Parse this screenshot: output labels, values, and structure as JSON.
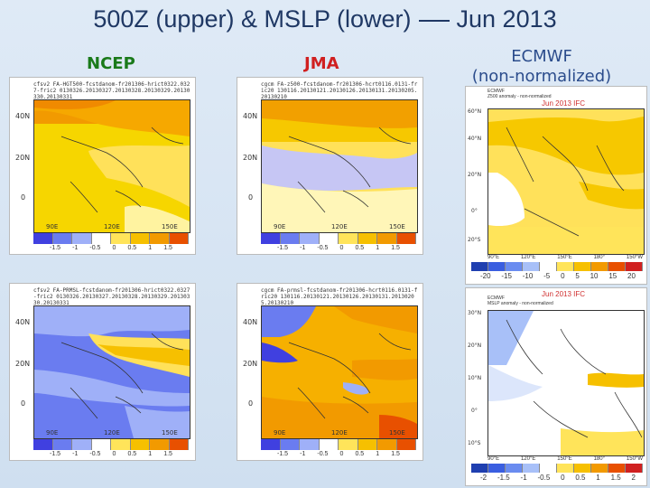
{
  "title": {
    "left": "500Z (upper) & MSLP (lower)",
    "right": "Jun 2013"
  },
  "columns": {
    "ncep": "NCEP",
    "jma": "JMA",
    "ecmwf_1": "ECMWF",
    "ecmwf_2": "(non-normalized)"
  },
  "small_panels": {
    "ylabels": [
      "40N",
      "20N",
      "0"
    ],
    "xlabels": [
      "90E",
      "120E",
      "150E"
    ],
    "scale": [
      "-1.5",
      "-1",
      "-0.5",
      "0",
      "0.5",
      "1",
      "1.5"
    ],
    "ncep_upper_hdr": "cfsv2 FA-HGT500-fcstdanom-fr201306-hrict0322.0327-fric2 0130326.20130327.20130328.20130329.20130330.20130331",
    "jma_upper_hdr": "cgcm FA-z500-fcstdanom-fr201306-hcrt0116.0131-fric20 130116.20130121.20130126.20130131.20130205.20130210",
    "ncep_lower_hdr": "cfsv2 FA-PRMSL-fcstdanom-fr201306-hrict0322.0327-fric2 0130326.20130327.20130328.20130329.20130330.20130331",
    "jma_lower_hdr": "cgcm FA-prmsl-fcstdanom-fr201306-hcrt0116.0131-fric20 130116.20130121.20130126.20130131.20130205.20130210"
  },
  "ecmwf_upper": {
    "hdr_line1": "ECMWF",
    "hdr_line2": "Z500 anomaly - non-normalized",
    "date": "Jun 2013 IFC",
    "ylabels": [
      "60°N",
      "40°N",
      "20°N",
      "0°",
      "20°S"
    ],
    "xlabels": [
      "90°E",
      "120°E",
      "150°E",
      "180°",
      "150°W"
    ],
    "scale": [
      "-20",
      "-15",
      "-10",
      "-5",
      "0",
      "5",
      "10",
      "15",
      "20"
    ]
  },
  "ecmwf_lower": {
    "hdr_line1": "ECMWF",
    "hdr_line2": "MSLP anomaly - non-normalized",
    "date": "Jun 2013 IFC",
    "ylabels": [
      "30°N",
      "20°N",
      "10°N",
      "0°",
      "10°S"
    ],
    "xlabels": [
      "90°E",
      "120°E",
      "150°E",
      "180°",
      "150°W"
    ],
    "scale": [
      "-2",
      "-1.5",
      "-1",
      "-0.5",
      "0",
      "0.5",
      "1",
      "1.5",
      "2"
    ]
  },
  "colors": {
    "title": "#1f3864",
    "ncep": "#1a7a1a",
    "jma": "#d02020",
    "ecmwf": "#2b4c8c"
  }
}
